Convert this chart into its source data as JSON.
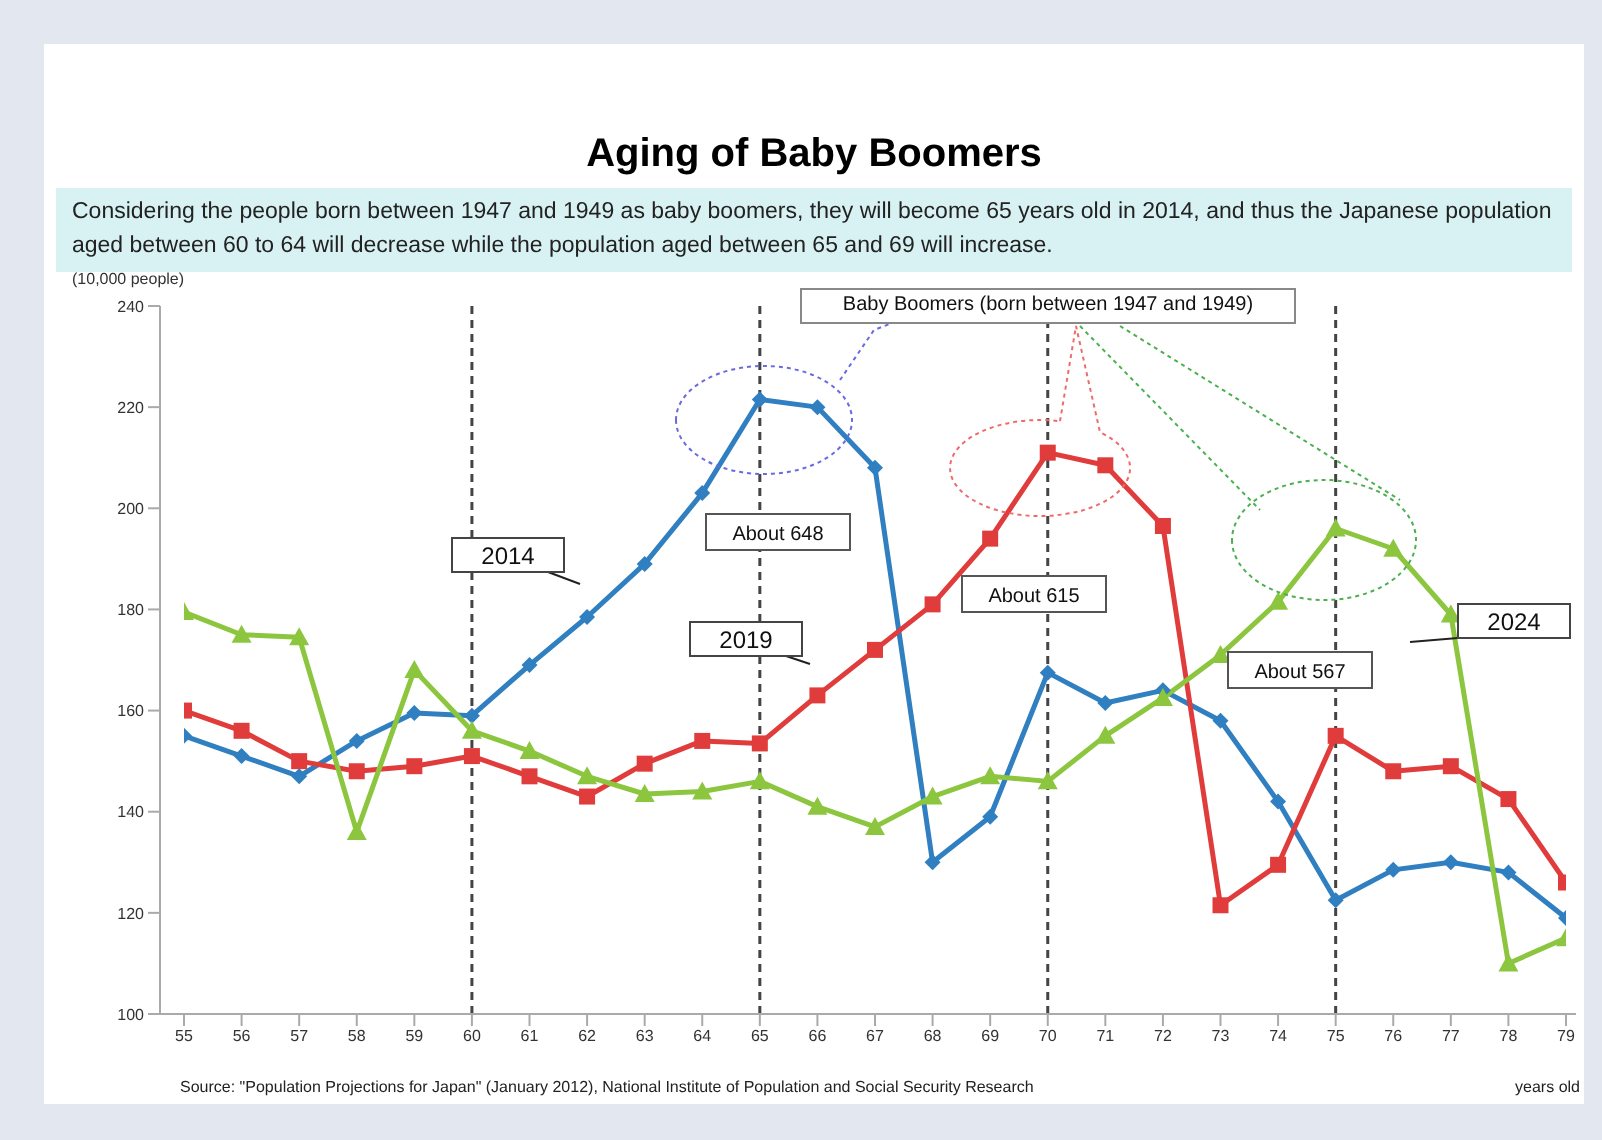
{
  "chart_data": {
    "type": "line",
    "title": "Aging of Baby Boomers",
    "subtitle": "Considering the people born between 1947 and 1949 as baby boomers, they will become 65 years old in 2014, and thus the Japanese population aged between 60 to 64 will decrease while the population aged between 65 and 69 will increase.",
    "ylabel": "(10,000  people)",
    "xlabel": "years old",
    "categories": [
      "55",
      "56",
      "57",
      "58",
      "59",
      "60",
      "61",
      "62",
      "63",
      "64",
      "65",
      "66",
      "67",
      "68",
      "69",
      "70",
      "71",
      "72",
      "73",
      "74",
      "75",
      "76",
      "77",
      "78",
      "79"
    ],
    "series": [
      {
        "name": "2014",
        "color": "#2f7fc1",
        "marker": "diamond",
        "values": [
          155,
          151,
          147,
          154,
          159.5,
          159,
          169,
          178.5,
          189,
          203,
          221.5,
          220,
          208,
          130,
          139,
          167.5,
          161.5,
          164,
          158,
          142,
          122.5,
          128.5,
          130,
          128,
          119
        ]
      },
      {
        "name": "2019",
        "color": "#e03c3c",
        "marker": "square",
        "values": [
          160,
          156,
          150,
          148,
          149,
          151,
          147,
          143,
          149.5,
          154,
          153.5,
          163,
          172,
          181,
          194,
          211,
          208.5,
          196.5,
          121.5,
          129.5,
          155,
          148,
          149,
          142.5,
          126
        ]
      },
      {
        "name": "2024",
        "color": "#8cc63f",
        "marker": "triangle",
        "values": [
          179.5,
          175,
          174.5,
          136,
          168,
          156,
          152,
          147,
          143.5,
          144,
          146,
          141,
          137,
          143,
          147,
          146,
          155,
          162.5,
          171,
          181.5,
          196,
          192,
          179,
          110,
          115
        ]
      }
    ],
    "ylim": [
      100,
      240
    ],
    "yticks": [
      100,
      120,
      140,
      160,
      180,
      200,
      220,
      240
    ],
    "grid": false,
    "ref_lines": [
      {
        "axis": "x",
        "value": "60",
        "line_style": "dashed"
      },
      {
        "axis": "x",
        "value": "65",
        "line_style": "dashed"
      },
      {
        "axis": "x",
        "value": "70",
        "line_style": "dashed"
      },
      {
        "axis": "x",
        "value": "75",
        "line_style": "dashed"
      }
    ],
    "annotations": [
      "About 648",
      "About 615",
      "About 567",
      "Baby Boomers (born between 1947 and 1949)",
      "Source: \"Population Projections for Japan\" (January 2012), National Institute of Population and Social Security Research"
    ]
  }
}
